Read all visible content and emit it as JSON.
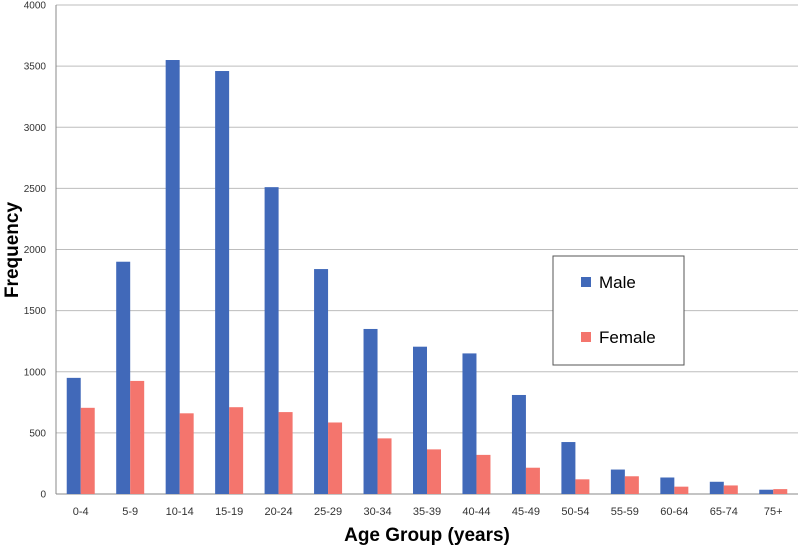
{
  "chart_data": {
    "type": "bar",
    "title": "",
    "xlabel": "Age Group (years)",
    "ylabel": "Frequency",
    "ylim": [
      0,
      4000
    ],
    "yticks": [
      0,
      500,
      1000,
      1500,
      2000,
      2500,
      3000,
      3500,
      4000
    ],
    "grid": true,
    "legend_position": "right",
    "categories": [
      "0-4",
      "5-9",
      "10-14",
      "15-19",
      "20-24",
      "25-29",
      "30-34",
      "35-39",
      "40-44",
      "45-49",
      "50-54",
      "55-59",
      "60-64",
      "65-74",
      "75+"
    ],
    "series": [
      {
        "name": "Male",
        "color": "#4169b9",
        "values": [
          950,
          1900,
          3550,
          3460,
          2510,
          1840,
          1350,
          1205,
          1150,
          810,
          425,
          200,
          135,
          100,
          35
        ]
      },
      {
        "name": "Female",
        "color": "#f4756d",
        "values": [
          705,
          925,
          660,
          710,
          670,
          585,
          455,
          365,
          320,
          215,
          120,
          145,
          60,
          70,
          40
        ]
      }
    ]
  }
}
